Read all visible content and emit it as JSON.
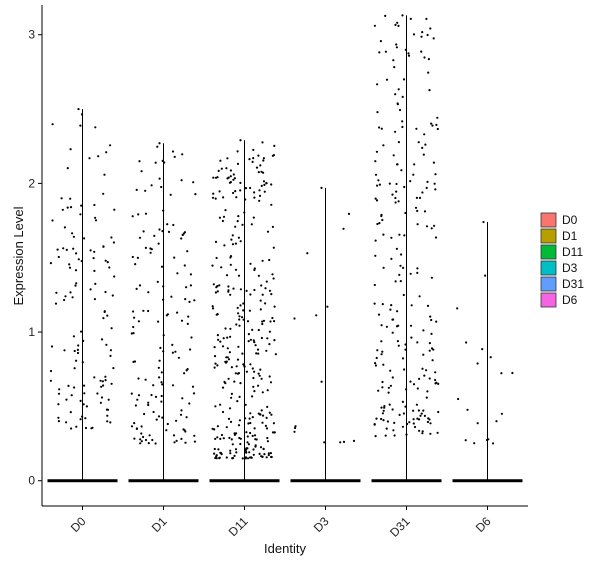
{
  "chart_data": {
    "type": "violin-jitter",
    "title": "",
    "xlabel": "Identity",
    "ylabel": "Expression Level",
    "categories": [
      "D0",
      "D1",
      "D11",
      "D3",
      "D31",
      "D6"
    ],
    "ylim": [
      -0.17,
      3.2
    ],
    "yticks": [
      0,
      1,
      2,
      3
    ],
    "grid": false,
    "legend_position": "right",
    "legend": [
      {
        "name": "D0",
        "color": "#F8766D"
      },
      {
        "name": "D1",
        "color": "#B79F00"
      },
      {
        "name": "D11",
        "color": "#00BA38"
      },
      {
        "name": "D3",
        "color": "#00BFC4"
      },
      {
        "name": "D31",
        "color": "#619CFF"
      },
      {
        "name": "D6",
        "color": "#F564E3"
      }
    ],
    "series": [
      {
        "category": "D0",
        "max": 2.5,
        "n_nonzero": 130,
        "lo": 0.35,
        "hi": 2.48
      },
      {
        "category": "D1",
        "max": 2.27,
        "n_nonzero": 150,
        "lo": 0.25,
        "hi": 2.27
      },
      {
        "category": "D11",
        "max": 2.29,
        "n_nonzero": 340,
        "lo": 0.15,
        "hi": 2.29
      },
      {
        "category": "D3",
        "max": 1.97,
        "n_nonzero": 14,
        "lo": 0.25,
        "hi": 1.97
      },
      {
        "category": "D31",
        "max": 3.13,
        "n_nonzero": 240,
        "lo": 0.3,
        "hi": 3.13
      },
      {
        "category": "D6",
        "max": 1.74,
        "n_nonzero": 18,
        "lo": 0.25,
        "hi": 1.74
      }
    ]
  }
}
